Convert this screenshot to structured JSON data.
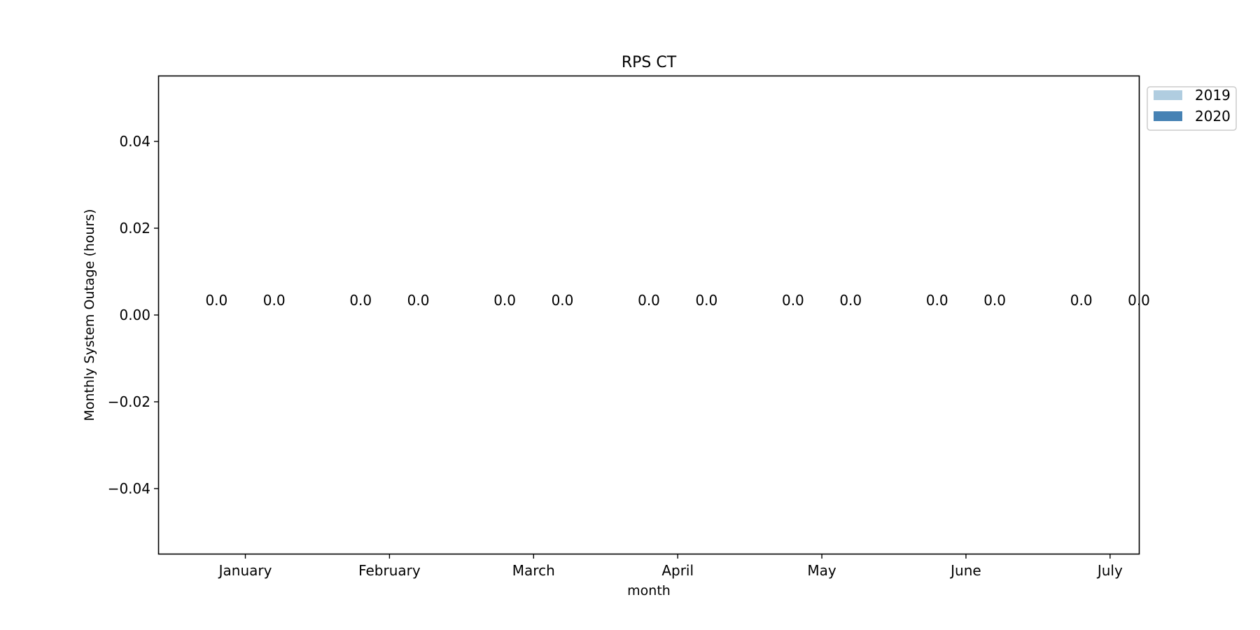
{
  "chart_data": {
    "type": "bar",
    "title": "RPS CT",
    "xlabel": "month",
    "ylabel": "Monthly System Outage (hours)",
    "categories": [
      "January",
      "February",
      "March",
      "April",
      "May",
      "June",
      "July"
    ],
    "series": [
      {
        "name": "2019",
        "color": "#b0cde0",
        "values": [
          0.0,
          0.0,
          0.0,
          0.0,
          0.0,
          0.0,
          0.0
        ]
      },
      {
        "name": "2020",
        "color": "#4682b4",
        "values": [
          0.0,
          0.0,
          0.0,
          0.0,
          0.0,
          0.0,
          0.0
        ]
      }
    ],
    "data_labels": [
      [
        "0.0",
        "0.0",
        "0.0",
        "0.0",
        "0.0",
        "0.0",
        "0.0"
      ],
      [
        "0.0",
        "0.0",
        "0.0",
        "0.0",
        "0.0",
        "0.0",
        "0.0"
      ]
    ],
    "ylim": [
      -0.055,
      0.055
    ],
    "yticks": [
      -0.04,
      -0.02,
      0.0,
      0.02,
      0.04
    ],
    "ytick_labels": [
      "−0.04",
      "−0.02",
      "0.00",
      "0.02",
      "0.04"
    ],
    "grid": false,
    "legend_position": "upper right, outside plot"
  }
}
